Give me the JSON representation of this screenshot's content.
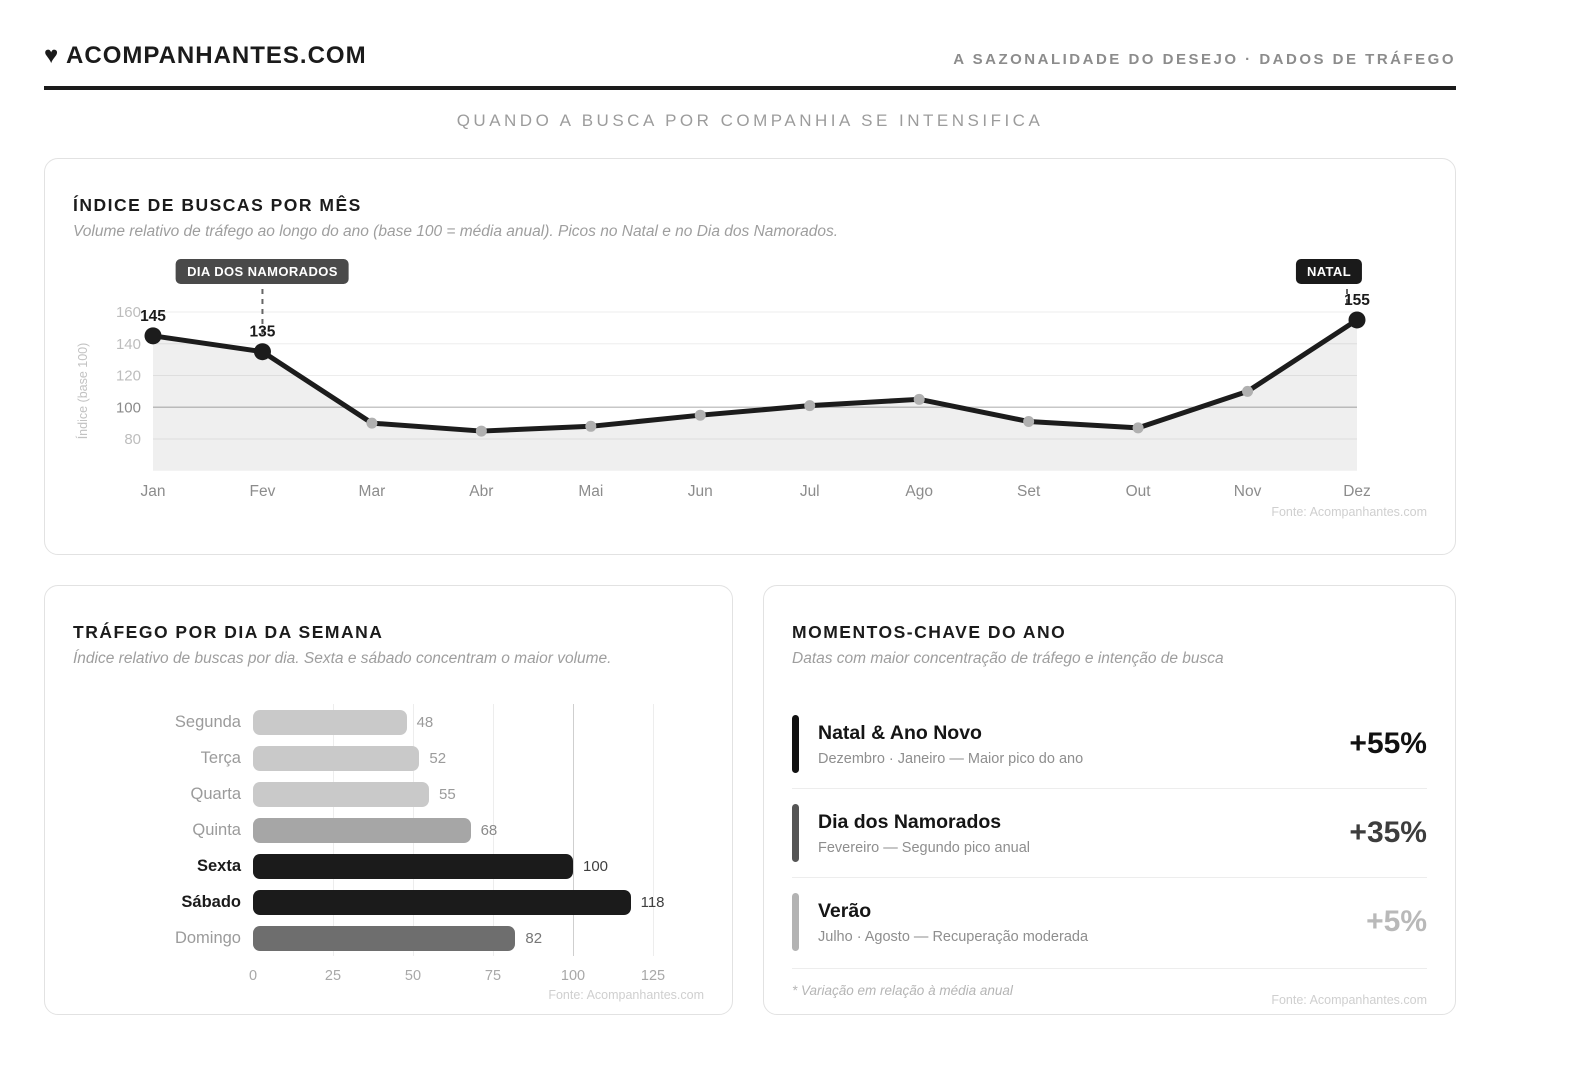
{
  "header": {
    "brand": "♥ ACOMPANHANTES.COM",
    "tagline": "A SAZONALIDADE DO DESEJO · DADOS DE TRÁFEGO",
    "heading": "QUANDO A BUSCA POR COMPANHIA SE INTENSIFICA"
  },
  "chart_data": [
    {
      "type": "line",
      "title": "ÍNDICE DE BUSCAS POR MÊS",
      "subtitle": "Volume relativo de tráfego ao longo do ano (base 100 = média anual). Picos no Natal e no Dia dos Namorados.",
      "categories": [
        "Jan",
        "Fev",
        "Mar",
        "Abr",
        "Mai",
        "Jun",
        "Jul",
        "Ago",
        "Set",
        "Out",
        "Nov",
        "Dez"
      ],
      "values": [
        145,
        135,
        90,
        85,
        88,
        95,
        101,
        105,
        91,
        87,
        110,
        155
      ],
      "emphasized_months": [
        "Jan",
        "Fev",
        "Dez"
      ],
      "point_labels": {
        "Jan": "145",
        "Fev": "135",
        "Dez": "155"
      },
      "annotations": [
        {
          "label": "DIA DOS NAMORADOS",
          "month": "Fev",
          "badge_color": "#4a4a4a"
        },
        {
          "label": "NATAL",
          "month": "Dez",
          "badge_color": "#1a1a1a"
        }
      ],
      "ylabel": "Índice (base 100)",
      "yticks": [
        160,
        140,
        120,
        100,
        80
      ],
      "ylim": [
        60,
        170
      ],
      "baseline": 100,
      "grid": true,
      "line_color": "#1c1c1c",
      "area_color": "#efefef",
      "dot_color_muted": "#b0b0b0",
      "source": "Fonte: Acompanhantes.com"
    },
    {
      "type": "bar",
      "orientation": "horizontal",
      "title": "TRÁFEGO POR DIA DA SEMANA",
      "subtitle": "Índice relativo de buscas por dia. Sexta e sábado concentram o maior volume.",
      "categories": [
        "Segunda",
        "Terça",
        "Quarta",
        "Quinta",
        "Sexta",
        "Sábado",
        "Domingo"
      ],
      "values": [
        48,
        52,
        55,
        68,
        100,
        118,
        82
      ],
      "bar_colors": [
        "#c9c9c9",
        "#c9c9c9",
        "#c9c9c9",
        "#a6a6a6",
        "#1b1b1b",
        "#1b1b1b",
        "#6e6e6e"
      ],
      "value_label_colors": [
        "#9b9b9b",
        "#9b9b9b",
        "#9b9b9b",
        "#8a8a8a",
        "#3f3f3f",
        "#3f3f3f",
        "#777777"
      ],
      "emphasized": [
        false,
        false,
        false,
        false,
        true,
        true,
        false
      ],
      "xticks": [
        0,
        25,
        50,
        75,
        100,
        125
      ],
      "xlim": [
        0,
        140
      ],
      "baseline": 100,
      "grid": true,
      "source": "Fonte: Acompanhantes.com"
    }
  ],
  "moments": {
    "title": "MOMENTOS-CHAVE DO ANO",
    "subtitle": "Datas com maior concentração de tráfego e intenção de busca",
    "items": [
      {
        "title": "Natal & Ano Novo",
        "desc": "Dezembro · Janeiro — Maior pico do ano",
        "value": "+55%",
        "accent_color": "#111111",
        "value_color": "#111111"
      },
      {
        "title": "Dia dos Namorados",
        "desc": "Fevereiro — Segundo pico anual",
        "value": "+35%",
        "accent_color": "#555555",
        "value_color": "#3d3d3d"
      },
      {
        "title": "Verão",
        "desc": "Julho · Agosto — Recuperação moderada",
        "value": "+5%",
        "accent_color": "#b3b3b3",
        "value_color": "#b9b9b9"
      }
    ],
    "footnote": "* Variação em relação à média anual",
    "source": "Fonte: Acompanhantes.com"
  }
}
